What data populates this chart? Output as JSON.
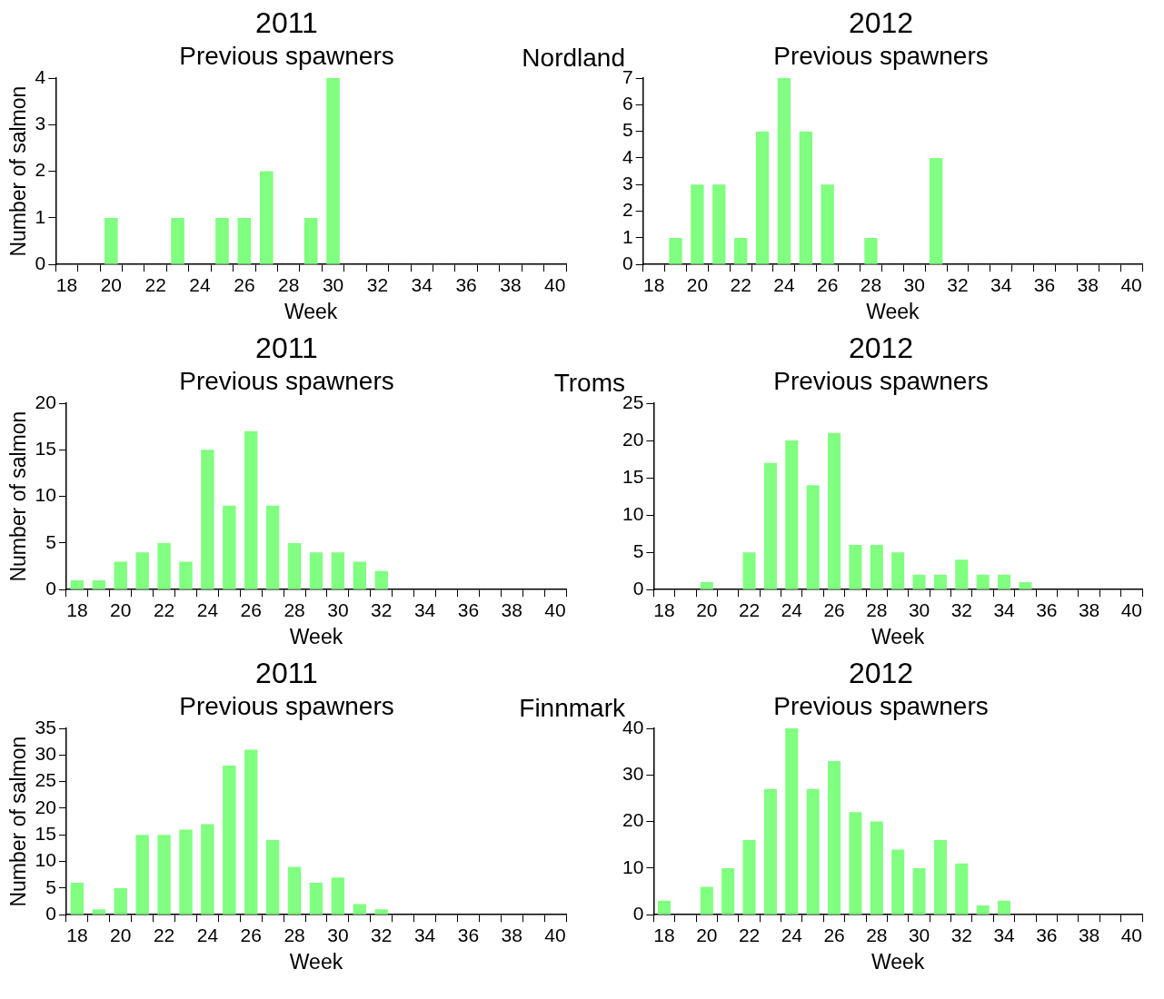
{
  "chart_data": [
    {
      "type": "bar",
      "title": "2011",
      "subtitle": "Previous spawners",
      "annotations": [
        "Nordland"
      ],
      "xlabel": "Week",
      "ylabel": "Number of salmon",
      "categories": [
        "18",
        null,
        "20",
        null,
        "22",
        null,
        "24",
        null,
        "26",
        null,
        "28",
        null,
        "30",
        null,
        "32",
        null,
        "34",
        null,
        "36",
        null,
        "38",
        null,
        "40"
      ],
      "values": [
        0,
        0,
        1,
        0,
        0,
        1,
        0,
        1,
        1,
        2,
        0,
        1,
        4,
        0,
        0,
        0,
        0,
        0,
        0,
        0,
        0,
        0,
        0
      ],
      "color": "#80ff80",
      "ylim": [
        0,
        4
      ],
      "yticks": [
        0,
        1,
        2,
        3,
        4
      ],
      "grid": false,
      "legend": false
    },
    {
      "type": "bar",
      "title": "2012",
      "subtitle": "Previous spawners",
      "xlabel": "Week",
      "categories": [
        "18",
        null,
        "20",
        null,
        "22",
        null,
        "24",
        null,
        "26",
        null,
        "28",
        null,
        "30",
        null,
        "32",
        null,
        "34",
        null,
        "36",
        null,
        "38",
        null,
        "40"
      ],
      "values": [
        0,
        1,
        3,
        3,
        1,
        5,
        7,
        5,
        3,
        0,
        1,
        0,
        0,
        4,
        0,
        0,
        0,
        0,
        0,
        0,
        0,
        0,
        0
      ],
      "color": "#80ff80",
      "ylim": [
        0,
        7
      ],
      "yticks": [
        0,
        1,
        2,
        3,
        4,
        5,
        6,
        7
      ],
      "grid": false,
      "legend": false
    },
    {
      "type": "bar",
      "title": "2011",
      "subtitle": "Previous spawners",
      "annotations": [
        "Troms"
      ],
      "xlabel": "Week",
      "ylabel": "Number of salmon",
      "categories": [
        "18",
        null,
        "20",
        null,
        "22",
        null,
        "24",
        null,
        "26",
        null,
        "28",
        null,
        "30",
        null,
        "32",
        null,
        "34",
        null,
        "36",
        null,
        "38",
        null,
        "40"
      ],
      "values": [
        1,
        1,
        3,
        4,
        5,
        3,
        15,
        9,
        17,
        9,
        5,
        4,
        4,
        3,
        2,
        0,
        0,
        0,
        0,
        0,
        0,
        0,
        0
      ],
      "color": "#80ff80",
      "ylim": [
        0,
        20
      ],
      "yticks": [
        0,
        5,
        10,
        15,
        20
      ],
      "grid": false,
      "legend": false
    },
    {
      "type": "bar",
      "title": "2012",
      "subtitle": "Previous spawners",
      "xlabel": "Week",
      "categories": [
        "18",
        null,
        "20",
        null,
        "22",
        null,
        "24",
        null,
        "26",
        null,
        "28",
        null,
        "30",
        null,
        "32",
        null,
        "34",
        null,
        "36",
        null,
        "38",
        null,
        "40"
      ],
      "values": [
        0,
        0,
        1,
        0,
        5,
        17,
        20,
        14,
        21,
        6,
        6,
        5,
        2,
        2,
        4,
        2,
        2,
        1,
        0,
        0,
        0,
        0,
        0
      ],
      "color": "#80ff80",
      "ylim": [
        0,
        25
      ],
      "yticks": [
        0,
        5,
        10,
        15,
        20,
        25
      ],
      "grid": false,
      "legend": false
    },
    {
      "type": "bar",
      "title": "2011",
      "subtitle": "Previous spawners",
      "annotations": [
        "Finnmark"
      ],
      "xlabel": "Week",
      "ylabel": "Number of salmon",
      "categories": [
        "18",
        null,
        "20",
        null,
        "22",
        null,
        "24",
        null,
        "26",
        null,
        "28",
        null,
        "30",
        null,
        "32",
        null,
        "34",
        null,
        "36",
        null,
        "38",
        null,
        "40"
      ],
      "values": [
        6,
        1,
        5,
        15,
        15,
        16,
        17,
        28,
        31,
        14,
        9,
        6,
        7,
        2,
        1,
        0,
        0,
        0,
        0,
        0,
        0,
        0,
        0
      ],
      "color": "#80ff80",
      "ylim": [
        0,
        35
      ],
      "yticks": [
        0,
        5,
        10,
        15,
        20,
        25,
        30,
        35
      ],
      "grid": false,
      "legend": false
    },
    {
      "type": "bar",
      "title": "2012",
      "subtitle": "Previous spawners",
      "xlabel": "Week",
      "categories": [
        "18",
        null,
        "20",
        null,
        "22",
        null,
        "24",
        null,
        "26",
        null,
        "28",
        null,
        "30",
        null,
        "32",
        null,
        "34",
        null,
        "36",
        null,
        "38",
        null,
        "40"
      ],
      "values": [
        3,
        0,
        6,
        10,
        16,
        27,
        40,
        27,
        33,
        22,
        20,
        14,
        10,
        16,
        11,
        2,
        3,
        0,
        0,
        0,
        0,
        0,
        0
      ],
      "color": "#80ff80",
      "ylim": [
        0,
        40
      ],
      "yticks": [
        0,
        10,
        20,
        30,
        40
      ],
      "grid": false,
      "legend": false
    }
  ]
}
